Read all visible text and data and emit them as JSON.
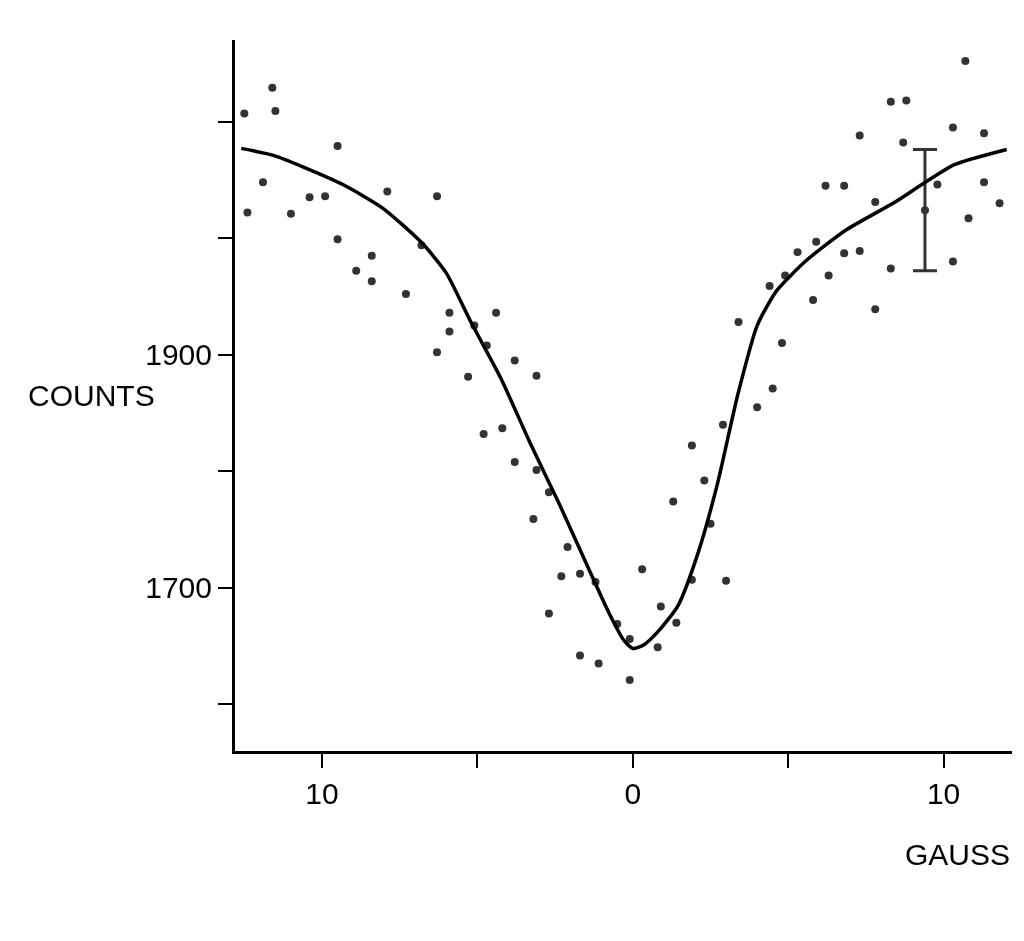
{
  "chart_data": {
    "type": "scatter",
    "xlabel": "GAUSS",
    "ylabel": "COUNTS",
    "xlim": [
      -12.8,
      12.2
    ],
    "ylim": [
      1560,
      2170
    ],
    "xticks": [
      {
        "value": -10,
        "label": "10"
      },
      {
        "value": -5,
        "label": null
      },
      0,
      {
        "value": 5,
        "label": null
      },
      10
    ],
    "yticks": [
      {
        "value": 1600,
        "label": null
      },
      1700,
      {
        "value": 1800,
        "label": null
      },
      1900,
      {
        "value": 2000,
        "label": null
      },
      {
        "value": 2100,
        "label": null
      }
    ],
    "grid": false,
    "series": [
      {
        "type": "scatter",
        "marker": "circle",
        "color": "#333333",
        "x": [
          -12.5,
          -11.6,
          -11.5,
          -9.5,
          -11.9,
          -12.4,
          -11.0,
          -10.4,
          -9.9,
          -7.9,
          -6.3,
          -9.5,
          -8.4,
          -8.9,
          -8.4,
          -7.3,
          -6.8,
          -5.9,
          -4.4,
          -5.9,
          -5.1,
          -4.7,
          -6.3,
          -5.3,
          -3.8,
          -3.1,
          -4.8,
          -4.2,
          -3.8,
          -3.1,
          -2.7,
          -3.2,
          -2.1,
          -2.3,
          -1.7,
          -1.2,
          -2.7,
          -1.7,
          -1.1,
          -0.5,
          -0.1,
          -0.1,
          0.8,
          0.9,
          1.4,
          0.3,
          1.9,
          1.3,
          2.3,
          2.5,
          1.9,
          2.9,
          3.0,
          10.7,
          8.3,
          8.8,
          7.3,
          8.7,
          10.3,
          11.3,
          6.2,
          6.8,
          7.8,
          9.8,
          11.3,
          11.8,
          9.4,
          10.8,
          5.9,
          5.3,
          6.8,
          7.3,
          4.9,
          6.3,
          4.4,
          8.3,
          10.3,
          5.8,
          7.8,
          3.4,
          4.8,
          4.5,
          4.0
        ],
        "values": [
          2107,
          2129,
          2109,
          2079,
          2048,
          2022,
          2021,
          2035,
          2036,
          2040,
          2036,
          1999,
          1985,
          1972,
          1963,
          1952,
          1994,
          1936,
          1936,
          1920,
          1925,
          1908,
          1902,
          1881,
          1895,
          1882,
          1832,
          1837,
          1808,
          1801,
          1782,
          1759,
          1735,
          1710,
          1712,
          1705,
          1678,
          1642,
          1635,
          1669,
          1656,
          1621,
          1649,
          1684,
          1670,
          1716,
          1707,
          1774,
          1792,
          1755,
          1822,
          1840,
          1706,
          2152,
          2117,
          2118,
          2088,
          2082,
          2095,
          2090,
          2045,
          2045,
          2031,
          2046,
          2048,
          2030,
          2024,
          2017,
          1997,
          1988,
          1987,
          1989,
          1968,
          1968,
          1959,
          1974,
          1980,
          1947,
          1939,
          1928,
          1910,
          1871,
          1855
        ],
        "errors": [
          null,
          null,
          null,
          null,
          null,
          null,
          null,
          null,
          null,
          null,
          null,
          null,
          null,
          null,
          null,
          null,
          null,
          null,
          null,
          null,
          null,
          null,
          null,
          null,
          null,
          null,
          null,
          null,
          null,
          null,
          null,
          null,
          null,
          null,
          null,
          null,
          null,
          null,
          null,
          null,
          null,
          null,
          null,
          null,
          null,
          null,
          null,
          null,
          null,
          null,
          null,
          null,
          null,
          null,
          null,
          null,
          null,
          null,
          null,
          null,
          null,
          null,
          null,
          null,
          null,
          null,
          52,
          null,
          null,
          null,
          null,
          null,
          null,
          null,
          null,
          null,
          null,
          null,
          null,
          null,
          null,
          null,
          null
        ]
      },
      {
        "type": "line",
        "marker": "none",
        "line_style": "solid",
        "color": "#000000",
        "x": [
          -12.6,
          -11.56,
          -10.6,
          -9.33,
          -8.06,
          -6.79,
          -6.0,
          -5.21,
          -4.25,
          -3.3,
          -2.35,
          -1.4,
          -0.76,
          -0.29,
          0,
          0.35,
          0.83,
          1.46,
          2.1,
          2.73,
          3.37,
          4.0,
          4.63,
          5.59,
          6.86,
          8.44,
          9.3,
          10.35,
          12.03
        ],
        "values": [
          2077,
          2071,
          2061,
          2046,
          2026,
          1996,
          1970,
          1928,
          1880,
          1824,
          1771,
          1715,
          1678,
          1655,
          1648,
          1651,
          1663,
          1685,
          1730,
          1790,
          1865,
          1925,
          1955,
          1981,
          2007,
          2031,
          2046,
          2063,
          2076
        ]
      }
    ]
  }
}
